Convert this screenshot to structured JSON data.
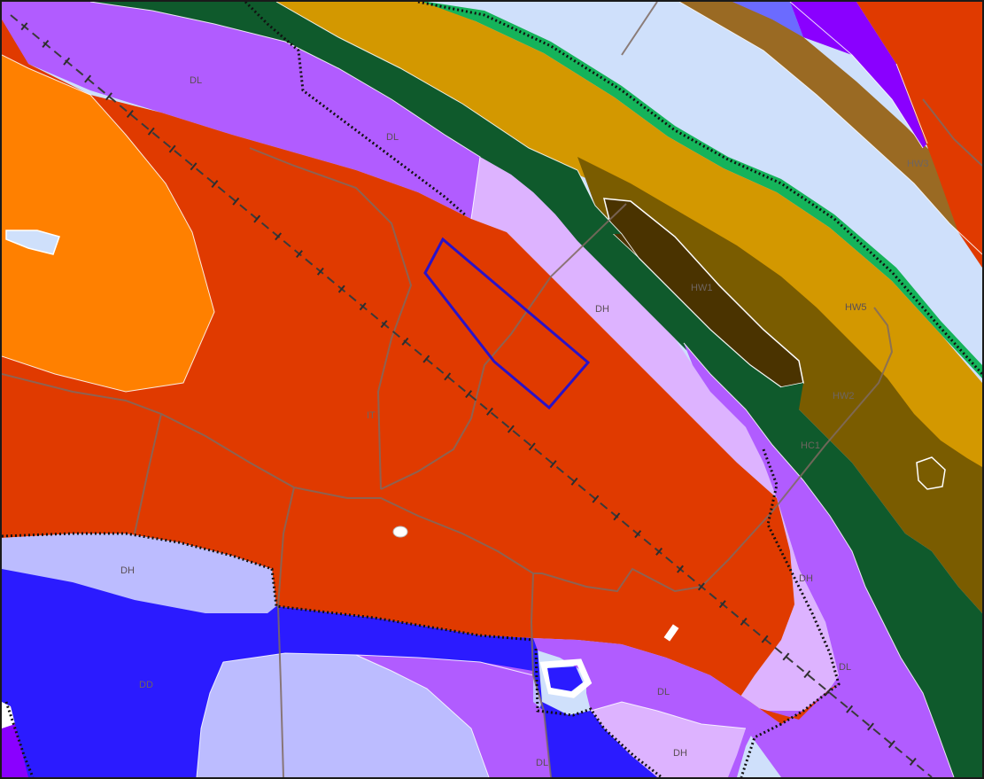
{
  "map": {
    "kind": "geologic-zone-map",
    "labels": {
      "dl_top": "DL",
      "dl_mid": "DL",
      "dh_center": "DH",
      "hw1": "HW1",
      "hw5": "HW5",
      "hw3": "HW3",
      "hw2": "HW2",
      "hc1": "HC1",
      "it": "IT",
      "dh_left": "DH",
      "dh_right": "DH",
      "dl_right": "DL",
      "dl_bottom_center": "DL",
      "dh_bottom": "DH",
      "dl_bottom": "DL",
      "dd": "DD"
    },
    "colors": {
      "water": "#cfe0fb",
      "dark_green": "#0f5a2c",
      "ochre": "#d39800",
      "brown": "#7a5c00",
      "dark_brown": "#4a3300",
      "tan_band": "#9a6a23",
      "violet": "#b15cff",
      "lavender": "#ddb3ff",
      "red_orange": "#e03a00",
      "orange": "#ff8000",
      "periwinkle": "#bcbcff",
      "blue": "#2b1bff",
      "purple": "#8a00ff",
      "bright_green": "#15b35a",
      "highlight_outline": "#2a12c8"
    },
    "symbols": {
      "railway": "railway-line",
      "boundary": "dotted-boundary",
      "road": "grey-road",
      "selected_parcel": "blue-outline-parcel"
    }
  }
}
